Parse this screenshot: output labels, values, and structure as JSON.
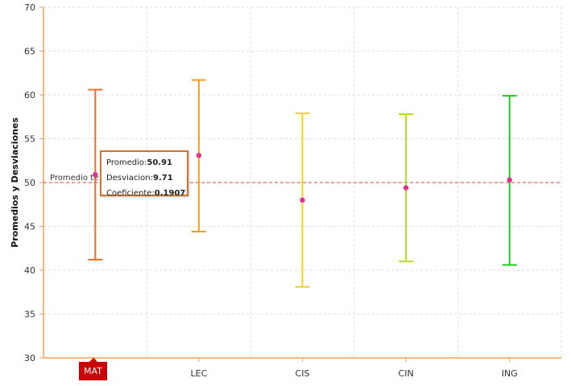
{
  "chart_data": {
    "type": "errorbar",
    "ylabel": "Promedios y Desviaciones",
    "ylim": [
      30,
      70
    ],
    "yticks": [
      "30",
      "35",
      "40",
      "45",
      "50",
      "55",
      "60",
      "65",
      "70"
    ],
    "categories": [
      "MAT",
      "LEC",
      "CIS",
      "CIN",
      "ING"
    ],
    "means": [
      50.91,
      53.1,
      48.0,
      49.4,
      50.3
    ],
    "lower": [
      41.2,
      44.4,
      38.1,
      41.0,
      40.6
    ],
    "upper": [
      60.6,
      61.7,
      57.9,
      57.8,
      59.9
    ],
    "colors": [
      "#e8702a",
      "#f0a020",
      "#f0d020",
      "#b0e020",
      "#20c820"
    ],
    "point_color": "#e03090",
    "reference": {
      "value": 50,
      "label": "Promedio te",
      "color": "#e04040"
    },
    "grid": true,
    "axis_color": "#f0a050"
  },
  "tooltip": {
    "promedio_label": "Promedio:",
    "promedio_value": "50.91",
    "desviacion_label": "Desviacion:",
    "desviacion_value": "9.71",
    "coeficiente_label": "Coeficiente:",
    "coeficiente_value": "0.1907"
  },
  "hover_category": "MAT"
}
